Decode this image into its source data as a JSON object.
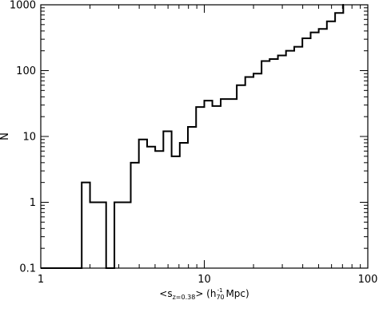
{
  "chart_data": {
    "type": "histogram",
    "xscale": "log",
    "yscale": "log",
    "xlim": [
      1,
      100
    ],
    "ylim": [
      0.1,
      1000
    ],
    "grid": false,
    "legend": "none",
    "line_color": "#000000",
    "x_ticklabels": [
      "1",
      "10",
      "100"
    ],
    "y_ticklabels": [
      "0.1",
      "1",
      "10",
      "100",
      "1000"
    ],
    "ylabel": "N",
    "xlabel": {
      "open": "<s",
      "sub": "z=0.38",
      "mid": "> (h",
      "sub2": "70",
      "sup2": "-1",
      "close": " Mpc)"
    },
    "bin_edges": [
      1.0,
      1.58,
      1.78,
      2.0,
      2.24,
      2.51,
      2.82,
      3.16,
      3.55,
      3.98,
      4.47,
      5.01,
      5.62,
      6.31,
      7.08,
      7.94,
      8.91,
      10.0,
      11.2,
      12.6,
      14.1,
      15.8,
      17.8,
      20.0,
      22.4,
      25.1,
      28.2,
      31.6,
      35.5,
      39.8,
      44.7,
      50.1,
      56.2,
      63.1,
      70.8
    ],
    "counts": [
      0.1,
      0.1,
      2,
      1,
      1,
      0.1,
      1,
      1,
      4,
      9,
      7,
      6,
      12,
      5,
      8,
      14,
      28,
      35,
      29,
      37,
      37,
      60,
      80,
      90,
      140,
      150,
      170,
      200,
      230,
      310,
      380,
      430,
      560,
      750,
      1000
    ]
  }
}
